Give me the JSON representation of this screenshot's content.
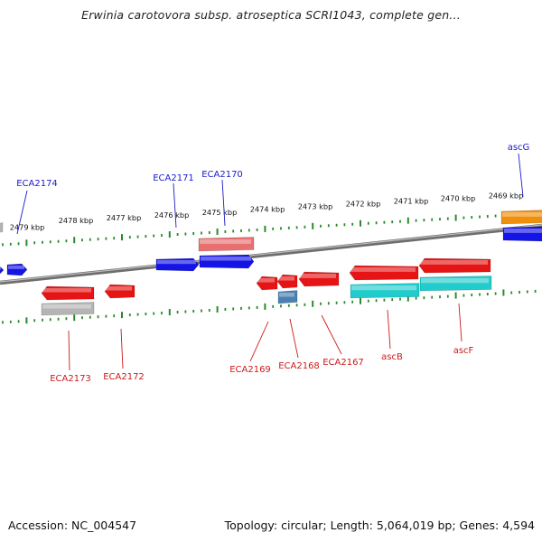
{
  "header": {
    "title": "Erwinia carotovora subsp. atroseptica SCRI1043, complete gen..."
  },
  "footer": {
    "accession": "Accession: NC_004547",
    "stats": "Topology: circular; Length: 5,064,019 bp; Genes: 4,594"
  },
  "scale": {
    "unit": "kbp",
    "labels": [
      "2479 kbp",
      "2478 kbp",
      "2477 kbp",
      "2476 kbp",
      "2475 kbp",
      "2474 kbp",
      "2473 kbp",
      "2472 kbp",
      "2471 kbp",
      "2470 kbp",
      "2469 kbp"
    ]
  },
  "genes": {
    "top": [
      "ECA2174",
      "ECA2171",
      "ECA2170",
      "ascG"
    ],
    "bottom": [
      "ECA2173",
      "ECA2172",
      "ECA2169",
      "ECA2168",
      "ECA2167",
      "ascB",
      "ascF"
    ]
  },
  "colors": {
    "forward_gene": "#1414e6",
    "reverse_gene": "#e61414",
    "cyan_feature": "#22cccc",
    "orange_feature": "#f0900a",
    "pink_feature": "#e87070",
    "grey_feature": "#b4b4b4",
    "steel_feature": "#4a80b0",
    "tick": "#2a8a2a",
    "backbone": "#888888",
    "top_label": "#1a1acc",
    "bottom_label": "#cc1a1a"
  }
}
